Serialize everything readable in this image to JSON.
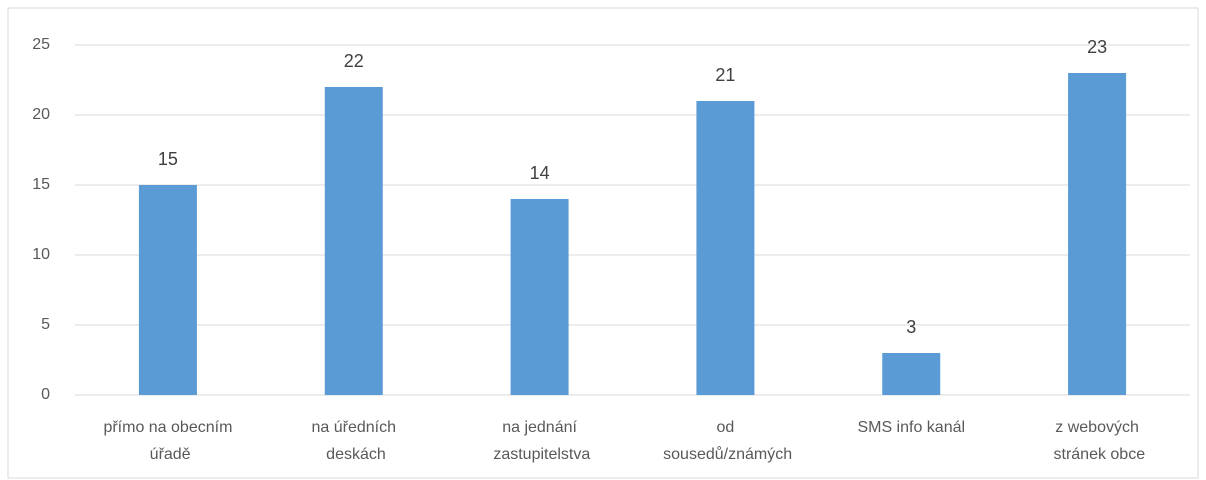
{
  "chart_data": {
    "type": "bar",
    "categories": [
      "přímo na obecním úřadě",
      "na úředních deskách",
      "na jednání zastupitelstva",
      "od sousedů/známých",
      "SMS info kanál",
      "z webových stránek obce"
    ],
    "values": [
      15,
      22,
      14,
      21,
      3,
      23
    ],
    "color": "#5b9bd5",
    "ylim": [
      0,
      25
    ],
    "yticks": [
      0,
      5,
      10,
      15,
      20,
      25
    ],
    "grid": true
  }
}
